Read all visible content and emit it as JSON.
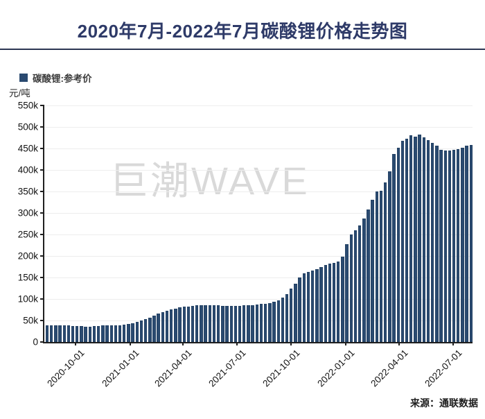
{
  "title": "2020年7月-2022年7月碳酸锂价格走势图",
  "legend": {
    "label": "碳酸锂:参考价"
  },
  "y_unit": "元/吨",
  "watermark": "巨潮WAVE",
  "source": "来源：通联数据",
  "colors": {
    "bar": "#2a4a70",
    "title": "#2e3a68",
    "divider": "#2c3653",
    "watermark": "#d9d9d9",
    "axis": "#1f1f1f",
    "gridline": "#ededed"
  },
  "chart_data": {
    "type": "bar",
    "title": "2020年7月-2022年7月碳酸锂价格走势图",
    "series_name": "碳酸锂:参考价",
    "ylabel": "元/吨",
    "values_scale": "thousand yuan per ton",
    "x_note": "weekly observations, July 2020 to July 2022",
    "grid": true,
    "legend_position": "top-left",
    "ylim": [
      0,
      550
    ],
    "ytick_values": [
      0,
      50,
      100,
      150,
      200,
      250,
      300,
      350,
      400,
      450,
      500,
      550
    ],
    "ytick_labels": [
      "0",
      "50k",
      "100k",
      "150k",
      "200k",
      "250k",
      "300k",
      "350k",
      "400k",
      "450k",
      "500k",
      "550k"
    ],
    "xticks": [
      {
        "label": "2020-10-01",
        "pos": 0.073
      },
      {
        "label": "2021-01-01",
        "pos": 0.201
      },
      {
        "label": "2021-04-01",
        "pos": 0.324
      },
      {
        "label": "2021-07-01",
        "pos": 0.45
      },
      {
        "label": "2021-10-01",
        "pos": 0.576
      },
      {
        "label": "2022-01-01",
        "pos": 0.704
      },
      {
        "label": "2022-04-01",
        "pos": 0.829
      },
      {
        "label": "2022-07-01",
        "pos": 0.955
      }
    ],
    "values": [
      38,
      38,
      38,
      39,
      38,
      38,
      37,
      37,
      37,
      36,
      36,
      37,
      37,
      38,
      38,
      38,
      39,
      39,
      40,
      42,
      44,
      47,
      50,
      53,
      57,
      62,
      66,
      70,
      73,
      76,
      78,
      80,
      82,
      83,
      84,
      85,
      85,
      85,
      85,
      85,
      85,
      84,
      84,
      84,
      84,
      84,
      85,
      85,
      86,
      87,
      88,
      89,
      91,
      93,
      97,
      103,
      112,
      124,
      136,
      150,
      160,
      163,
      166,
      170,
      174,
      179,
      182,
      184,
      187,
      198,
      227,
      250,
      260,
      271,
      287,
      308,
      330,
      350,
      352,
      371,
      397,
      437,
      452,
      468,
      473,
      481,
      477,
      482,
      476,
      469,
      463,
      456,
      447,
      445,
      445,
      447,
      448,
      452,
      456,
      458
    ]
  }
}
